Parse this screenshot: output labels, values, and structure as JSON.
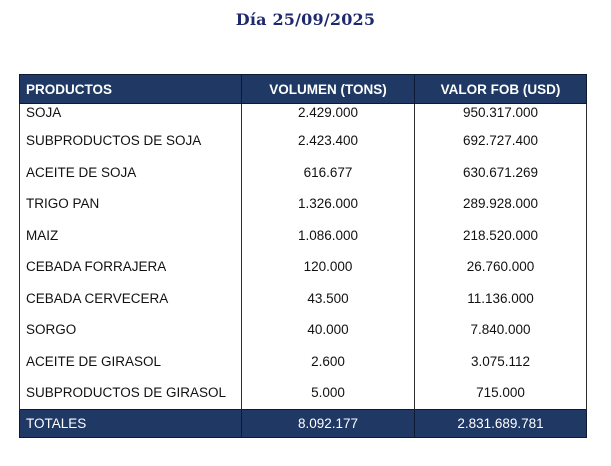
{
  "title": "Día 25/09/2025",
  "table": {
    "headers": {
      "product": "PRODUCTOS",
      "volume": "VOLUMEN (TONS)",
      "value": "VALOR FOB (USD)"
    },
    "rows": [
      {
        "product": "SOJA",
        "volume": "2.429.000",
        "value": "950.317.000"
      },
      {
        "product": "SUBPRODUCTOS DE SOJA",
        "volume": "2.423.400",
        "value": "692.727.400"
      },
      {
        "product": "ACEITE DE SOJA",
        "volume": "616.677",
        "value": "630.671.269"
      },
      {
        "product": "TRIGO PAN",
        "volume": "1.326.000",
        "value": "289.928.000"
      },
      {
        "product": "MAIZ",
        "volume": "1.086.000",
        "value": "218.520.000"
      },
      {
        "product": "CEBADA FORRAJERA",
        "volume": "120.000",
        "value": "26.760.000"
      },
      {
        "product": "CEBADA CERVECERA",
        "volume": "43.500",
        "value": "11.136.000"
      },
      {
        "product": "SORGO",
        "volume": "40.000",
        "value": "7.840.000"
      },
      {
        "product": "ACEITE DE GIRASOL",
        "volume": "2.600",
        "value": "3.075.112"
      },
      {
        "product": "SUBPRODUCTOS DE GIRASOL",
        "volume": "5.000",
        "value": "715.000"
      }
    ],
    "totals": {
      "label": "TOTALES",
      "volume": "8.092.177",
      "value": "2.831.689.781"
    }
  },
  "colors": {
    "header_bg": "#1f3864",
    "title_text": "#1f2a6e"
  }
}
